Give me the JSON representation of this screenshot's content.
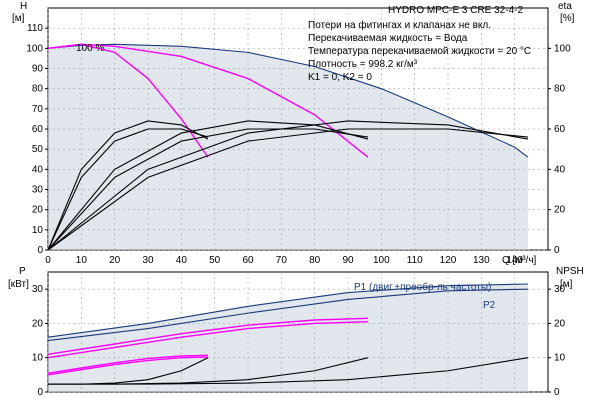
{
  "chart_data": [
    {
      "type": "line",
      "title": "HYDRO MPC-E 3 CRE 32-4-2",
      "notes": [
        "Потери на фитингах и клапанах не вкл.",
        "Перекачиваемая жидкость = Вода",
        "Температура перекачиваемой жидкости = 20 °C",
        "Плотность = 998.2 кг/м³",
        "K1 = 0, K2 = 0"
      ],
      "xlabel": "Q [м³/ч]",
      "xlim": [
        0,
        150
      ],
      "xticks": [
        0,
        10,
        20,
        30,
        40,
        50,
        60,
        70,
        80,
        90,
        100,
        110,
        120,
        130,
        140
      ],
      "ylabel_left": [
        "H",
        "[м]"
      ],
      "ylim_left": [
        0,
        120
      ],
      "yticks_left": [
        0,
        10,
        20,
        30,
        40,
        50,
        60,
        70,
        80,
        90,
        100,
        110
      ],
      "ylabel_right": [
        "eta",
        "[%]"
      ],
      "ylim_right": [
        0,
        120
      ],
      "yticks_right": [
        0,
        20,
        40,
        60,
        80,
        100
      ],
      "annotation": "100 %",
      "series": [
        {
          "role": "head-max",
          "color": "#1a3a7a",
          "x": [
            0,
            10,
            20,
            40,
            60,
            80,
            100,
            120,
            140,
            144
          ],
          "y": [
            100,
            101.5,
            102,
            101,
            98,
            91,
            80,
            66,
            51,
            46
          ]
        },
        {
          "role": "head-1pump",
          "color": "#ff00ff",
          "x": [
            0,
            10,
            20,
            30,
            40,
            48
          ],
          "y": [
            100,
            102,
            98,
            85,
            65,
            46
          ]
        },
        {
          "role": "head-2pump",
          "color": "#ff00ff",
          "x": [
            0,
            10,
            20,
            40,
            60,
            80,
            96
          ],
          "y": [
            100,
            102,
            101,
            96,
            85,
            67,
            46
          ]
        },
        {
          "role": "eta-1pump-a",
          "color": "#000000",
          "x": [
            0,
            10,
            20,
            30,
            40,
            48
          ],
          "y": [
            0,
            40,
            58,
            64,
            62,
            55
          ]
        },
        {
          "role": "eta-1pump-b",
          "color": "#000000",
          "x": [
            0,
            10,
            20,
            30,
            40,
            48
          ],
          "y": [
            0,
            36,
            54,
            60,
            60,
            56
          ]
        },
        {
          "role": "eta-2pump-a",
          "color": "#000000",
          "x": [
            0,
            20,
            40,
            60,
            80,
            96
          ],
          "y": [
            0,
            40,
            58,
            64,
            62,
            55
          ]
        },
        {
          "role": "eta-2pump-b",
          "color": "#000000",
          "x": [
            0,
            20,
            40,
            60,
            80,
            96
          ],
          "y": [
            0,
            36,
            54,
            60,
            60,
            56
          ]
        },
        {
          "role": "eta-3pump-a",
          "color": "#000000",
          "x": [
            0,
            30,
            60,
            90,
            120,
            144
          ],
          "y": [
            0,
            40,
            58,
            64,
            62,
            55
          ]
        },
        {
          "role": "eta-3pump-b",
          "color": "#000000",
          "x": [
            0,
            30,
            60,
            90,
            120,
            144
          ],
          "y": [
            0,
            36,
            54,
            60,
            60,
            56
          ]
        }
      ],
      "range_area": {
        "color": "#c8d3df",
        "upper": {
          "x": [
            0,
            10,
            20,
            40,
            60,
            80,
            100,
            120,
            140,
            144
          ],
          "y": [
            100,
            101.5,
            102,
            101,
            98,
            91,
            80,
            66,
            51,
            46
          ]
        },
        "lower": {
          "x": [
            0,
            144
          ],
          "y": [
            0,
            0
          ]
        }
      },
      "grid": true
    },
    {
      "type": "line",
      "xlim": [
        0,
        150
      ],
      "ylabel_left": [
        "P",
        "[кВт]"
      ],
      "ylim_left": [
        0,
        35
      ],
      "yticks_left": [
        0,
        10,
        20,
        30
      ],
      "ylabel_right": [
        "NPSH",
        "[м]"
      ],
      "ylim_right": [
        0,
        35
      ],
      "yticks_right": [
        0,
        10,
        20,
        30
      ],
      "series": [
        {
          "name": "P1 (двиг.+преобр-ль частоты)",
          "color": "#1a3a7a",
          "x": [
            0,
            30,
            60,
            90,
            120,
            144
          ],
          "y": [
            16,
            20,
            25,
            29,
            31,
            31.5
          ]
        },
        {
          "name": "P2",
          "color": "#1a3a7a",
          "x": [
            0,
            30,
            60,
            90,
            120,
            144
          ],
          "y": [
            15,
            18.5,
            23,
            27,
            29.5,
            30
          ]
        },
        {
          "role": "p1-2pump",
          "color": "#ff00ff",
          "x": [
            0,
            20,
            40,
            60,
            80,
            96
          ],
          "y": [
            11,
            14,
            17,
            19.5,
            21,
            21.5
          ]
        },
        {
          "role": "p2-2pump",
          "color": "#ff00ff",
          "x": [
            0,
            20,
            40,
            60,
            80,
            96
          ],
          "y": [
            10,
            13,
            16,
            18.5,
            20,
            20.5
          ]
        },
        {
          "role": "p1-1pump",
          "color": "#ff00ff",
          "x": [
            0,
            10,
            20,
            30,
            40,
            48
          ],
          "y": [
            5.5,
            7,
            8.5,
            9.8,
            10.5,
            10.7
          ]
        },
        {
          "role": "p2-1pump",
          "color": "#ff00ff",
          "x": [
            0,
            10,
            20,
            30,
            40,
            48
          ],
          "y": [
            5,
            6.5,
            8,
            9.2,
            10,
            10.2
          ]
        },
        {
          "role": "npsh-1pump",
          "color": "#000000",
          "x": [
            0,
            10,
            20,
            30,
            40,
            48
          ],
          "y": [
            2.3,
            2.3,
            2.6,
            3.6,
            6.2,
            10
          ]
        },
        {
          "role": "npsh-2pump",
          "color": "#000000",
          "x": [
            0,
            20,
            40,
            60,
            80,
            96
          ],
          "y": [
            2.3,
            2.3,
            2.6,
            3.6,
            6.2,
            10
          ]
        },
        {
          "role": "npsh-3pump",
          "color": "#000000",
          "x": [
            0,
            30,
            60,
            90,
            120,
            144
          ],
          "y": [
            2.3,
            2.3,
            2.6,
            3.6,
            6.2,
            10
          ]
        }
      ],
      "grid": true
    }
  ]
}
